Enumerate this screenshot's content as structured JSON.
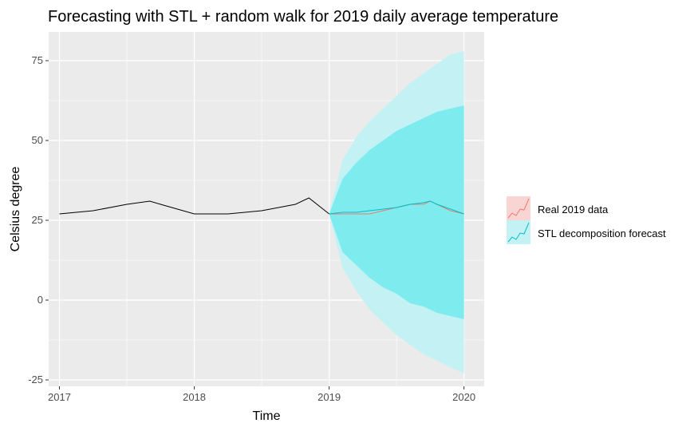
{
  "chart_data": {
    "type": "line",
    "title": "Forecasting with STL + random walk for 2019 daily average temperature",
    "xlabel": "Time",
    "ylabel": "Celsius degree",
    "xlim": [
      2016.92,
      2020.15
    ],
    "ylim": [
      -27,
      84
    ],
    "x_ticks": [
      2017,
      2018,
      2019,
      2020
    ],
    "y_ticks": [
      -25,
      0,
      25,
      50,
      75
    ],
    "grid": true,
    "legend_position": "right",
    "series": [
      {
        "role": "history",
        "color": "#000000",
        "x": [
          2017.0,
          2017.25,
          2017.5,
          2017.67,
          2017.75,
          2018.0,
          2018.25,
          2018.5,
          2018.75,
          2018.85,
          2019.0
        ],
        "y": [
          27,
          28,
          30,
          31,
          30,
          27,
          27,
          28,
          30,
          32,
          27
        ]
      },
      {
        "name": "Real 2019 data",
        "color": "#F8766D",
        "x": [
          2019.0,
          2019.1,
          2019.2,
          2019.3,
          2019.4,
          2019.5,
          2019.6,
          2019.7,
          2019.75,
          2019.8,
          2019.9,
          2020.0
        ],
        "y": [
          27,
          27,
          27,
          27,
          28,
          29,
          30,
          30,
          31,
          30,
          28,
          27
        ]
      },
      {
        "name": "STL decomposition forecast",
        "color": "#00BFC4",
        "x": [
          2019.0,
          2019.1,
          2019.2,
          2019.3,
          2019.4,
          2019.5,
          2019.6,
          2019.7,
          2019.75,
          2019.8,
          2019.9,
          2020.0
        ],
        "y": [
          27,
          27.5,
          27.5,
          28,
          28.5,
          29,
          30,
          30.5,
          31,
          30,
          28.5,
          27
        ]
      }
    ],
    "intervals": [
      {
        "level": "outer",
        "color": "#C4F2F4",
        "x": [
          2019.0,
          2019.1,
          2019.2,
          2019.3,
          2019.4,
          2019.5,
          2019.6,
          2019.7,
          2019.8,
          2019.9,
          2020.0
        ],
        "upper": [
          27,
          44,
          51,
          56,
          60,
          64,
          68,
          71,
          74,
          77,
          78
        ],
        "lower": [
          27,
          10,
          3,
          -3,
          -7,
          -11,
          -14,
          -17,
          -19,
          -21,
          -23
        ]
      },
      {
        "level": "inner",
        "color": "#7EEBEE",
        "x": [
          2019.0,
          2019.1,
          2019.2,
          2019.3,
          2019.4,
          2019.5,
          2019.6,
          2019.7,
          2019.8,
          2019.9,
          2020.0
        ],
        "upper": [
          27,
          38,
          43,
          47,
          50,
          53,
          55,
          57,
          59,
          60,
          61
        ],
        "lower": [
          27,
          15,
          11,
          7,
          4,
          2,
          -1,
          -2,
          -4,
          -5,
          -6
        ]
      }
    ]
  }
}
